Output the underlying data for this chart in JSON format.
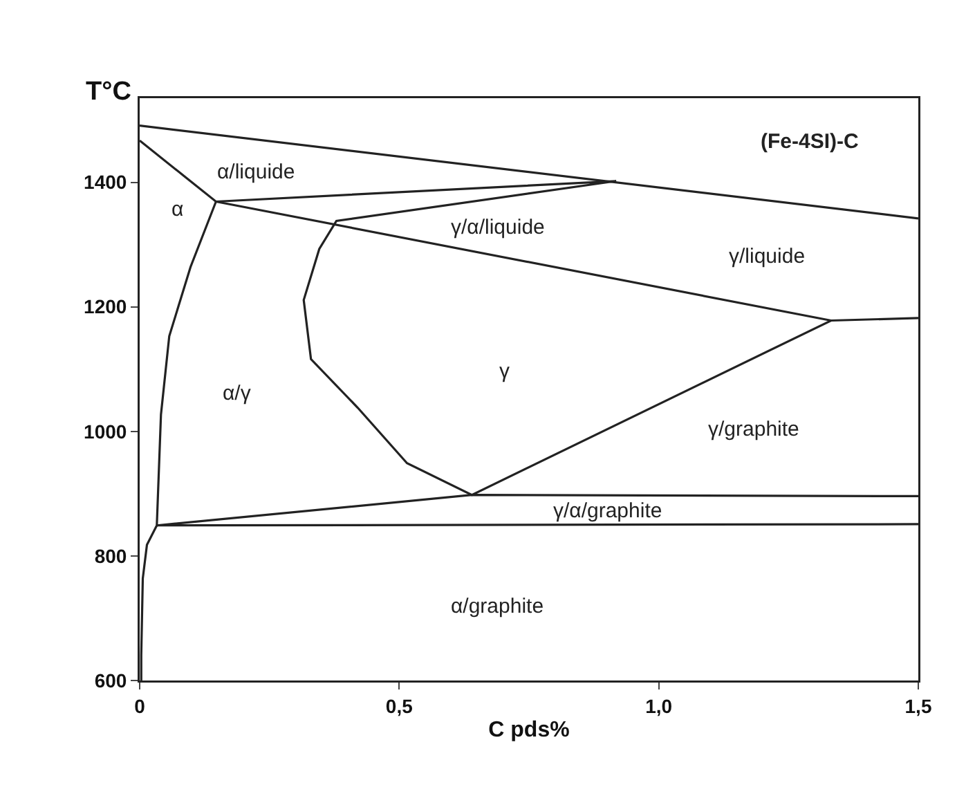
{
  "chart_data": {
    "type": "line",
    "xlabel": "C pds%",
    "ylabel": "T°C",
    "xlim": [
      0,
      1.5
    ],
    "ylim": [
      600,
      1535
    ],
    "xticks": [
      0,
      {
        "value": 0.5,
        "label": "0,5"
      },
      {
        "value": 1,
        "label": "1,0"
      },
      {
        "value": 1.5,
        "label": "1,5"
      }
    ],
    "yticks": [
      600,
      800,
      1000,
      1200,
      1400
    ],
    "grid": false,
    "marker": "none",
    "line_style": "solid",
    "series": [
      {
        "color": "#222222",
        "x": [
          0,
          1.5
        ],
        "values": [
          1491,
          1342
        ]
      },
      {
        "color": "#222222",
        "x": [
          0,
          0.147,
          0.918,
          0.379,
          0.346,
          0.316,
          0.33,
          0.42,
          0.515,
          0.64,
          1.332,
          1.5
        ],
        "values": [
          1467,
          1369,
          1402,
          1338,
          1293,
          1211,
          1116,
          1038,
          949,
          898,
          1178,
          1182
        ]
      },
      {
        "color": "#222222",
        "x": [
          0.147,
          1.332
        ],
        "values": [
          1369,
          1178
        ]
      },
      {
        "color": "#222222",
        "x": [
          0.033,
          0.64,
          1.5
        ],
        "values": [
          849,
          898,
          896
        ]
      },
      {
        "color": "#222222",
        "x": [
          0.033,
          1.5
        ],
        "values": [
          849,
          851
        ]
      },
      {
        "color": "#222222",
        "x": [
          0.147,
          0.098,
          0.057,
          0.041,
          0.033,
          0.014,
          0.006,
          0.003,
          0.003
        ],
        "values": [
          1369,
          1264,
          1153,
          1027,
          849,
          818,
          764,
          640,
          600
        ]
      }
    ],
    "annotations": [
      "(Fe-4SI)-C",
      "α/liquide",
      "α",
      "γ/α/liquide",
      "γ/liquide",
      "γ",
      "α/γ",
      "γ/graphite",
      "γ/α/graphite",
      "α/graphite"
    ]
  }
}
